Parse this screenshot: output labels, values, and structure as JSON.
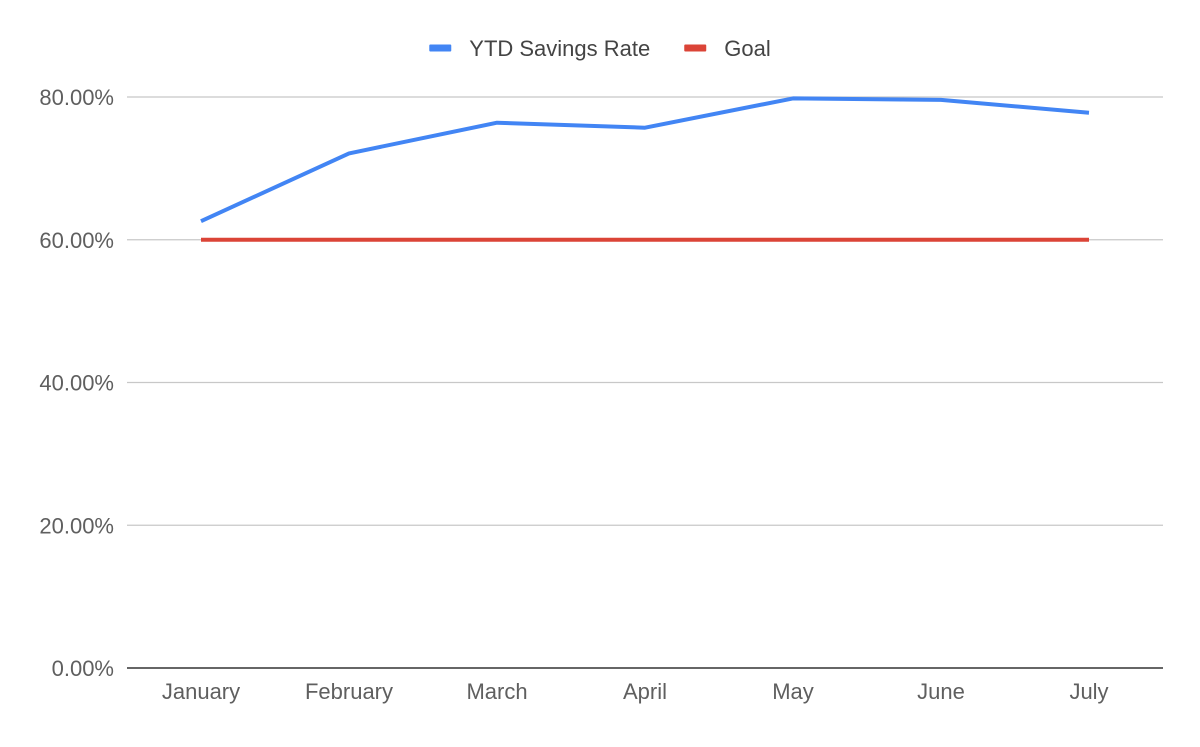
{
  "chart_data": {
    "type": "line",
    "categories": [
      "January",
      "February",
      "March",
      "April",
      "May",
      "June",
      "July"
    ],
    "series": [
      {
        "name": "YTD Savings Rate",
        "color": "#4285f4",
        "values": [
          62.6,
          72.1,
          76.4,
          75.7,
          79.8,
          79.6,
          77.8
        ]
      },
      {
        "name": "Goal",
        "color": "#db4437",
        "values": [
          60,
          60,
          60,
          60,
          60,
          60,
          60
        ]
      }
    ],
    "ylim": [
      0,
      80
    ],
    "yticks": [
      0,
      20,
      40,
      60,
      80
    ],
    "ytick_labels": [
      "0.00%",
      "20.00%",
      "40.00%",
      "60.00%",
      "80.00%"
    ],
    "title": "",
    "xlabel": "",
    "ylabel": "",
    "grid": true,
    "legend_position": "top-center",
    "gridline_color": "#c8c8c8",
    "axis_color": "#333333"
  }
}
